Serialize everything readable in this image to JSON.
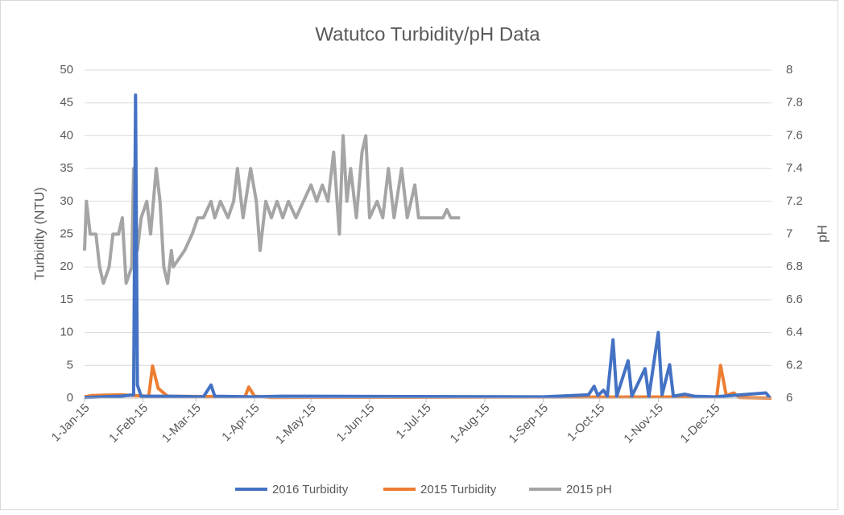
{
  "chart_data": {
    "type": "line",
    "title": "Watutco Turbidity/pH Data",
    "y_label": "Turbidity (NTU)",
    "y2_label": "pH",
    "xlim": [
      "2015-01-01",
      "2015-12-31"
    ],
    "xticks": [
      {
        "value": "2015-01-01",
        "label": "1-Jan-15"
      },
      {
        "value": "2015-02-01",
        "label": "1-Feb-15"
      },
      {
        "value": "2015-03-01",
        "label": "1-Mar-15"
      },
      {
        "value": "2015-04-01",
        "label": "1-Apr-15"
      },
      {
        "value": "2015-05-01",
        "label": "1-May-15"
      },
      {
        "value": "2015-06-01",
        "label": "1-Jun-15"
      },
      {
        "value": "2015-07-01",
        "label": "1-Jul-15"
      },
      {
        "value": "2015-08-01",
        "label": "1-Aug-15"
      },
      {
        "value": "2015-09-01",
        "label": "1-Sep-15"
      },
      {
        "value": "2015-10-01",
        "label": "1-Oct-15"
      },
      {
        "value": "2015-11-01",
        "label": "1-Nov-15"
      },
      {
        "value": "2015-12-01",
        "label": "1-Dec-15"
      }
    ],
    "ylim": [
      0,
      50
    ],
    "yticks": [
      0,
      5,
      10,
      15,
      20,
      25,
      30,
      35,
      40,
      45,
      50
    ],
    "y2lim": [
      6,
      8
    ],
    "y2ticks": [
      6,
      6.2,
      6.4,
      6.6,
      6.8,
      7,
      7.2,
      7.4,
      7.6,
      7.8,
      8
    ],
    "grid": true,
    "legend": "bottom",
    "series": [
      {
        "name": "2016 Turbidity",
        "color": "#4472c4",
        "x": [
          "2015-01-01",
          "2015-01-20",
          "2015-01-27",
          "2015-01-28",
          "2015-01-29",
          "2015-01-31",
          "2015-02-15",
          "2015-03-05",
          "2015-03-09",
          "2015-03-11",
          "2015-03-31",
          "2015-04-15",
          "2015-09-01",
          "2015-09-25",
          "2015-09-28",
          "2015-09-30",
          "2015-10-03",
          "2015-10-05",
          "2015-10-08",
          "2015-10-10",
          "2015-10-16",
          "2015-10-18",
          "2015-10-25",
          "2015-10-27",
          "2015-11-01",
          "2015-11-03",
          "2015-11-07",
          "2015-11-09",
          "2015-11-15",
          "2015-11-20",
          "2015-12-01",
          "2015-12-28",
          "2015-12-30"
        ],
        "values": [
          0.1,
          0.3,
          0.5,
          46.2,
          2,
          0.3,
          0.3,
          0.2,
          2,
          0.3,
          0.2,
          0.3,
          0.2,
          0.5,
          1.8,
          0.4,
          1.2,
          0.3,
          8.9,
          0.3,
          5.7,
          0.3,
          4.5,
          0.2,
          10,
          0.5,
          5.1,
          0.3,
          0.6,
          0.3,
          0.2,
          0.8,
          0.1
        ]
      },
      {
        "name": "2015 Turbidity",
        "color": "#ed7d31",
        "x": [
          "2015-01-01",
          "2015-01-05",
          "2015-01-20",
          "2015-02-04",
          "2015-02-06",
          "2015-02-09",
          "2015-02-14",
          "2015-03-27",
          "2015-03-29",
          "2015-04-01",
          "2015-04-10",
          "2015-12-02",
          "2015-12-04",
          "2015-12-07",
          "2015-12-11",
          "2015-12-14",
          "2015-12-31"
        ],
        "values": [
          0.2,
          0.4,
          0.5,
          0.3,
          4.9,
          1.5,
          0.3,
          0.2,
          1.7,
          0.3,
          0.1,
          0.2,
          5,
          0.4,
          0.8,
          0.1,
          0
        ]
      },
      {
        "name": "2015 pH",
        "color": "#a5a5a5",
        "axis": "y2",
        "x": [
          "2015-01-01",
          "2015-01-02",
          "2015-01-04",
          "2015-01-07",
          "2015-01-09",
          "2015-01-11",
          "2015-01-14",
          "2015-01-16",
          "2015-01-19",
          "2015-01-21",
          "2015-01-23",
          "2015-01-26",
          "2015-01-27",
          "2015-01-29",
          "2015-01-31",
          "2015-02-03",
          "2015-02-05",
          "2015-02-08",
          "2015-02-10",
          "2015-02-12",
          "2015-02-14",
          "2015-02-16",
          "2015-02-17",
          "2015-02-23",
          "2015-02-27",
          "2015-03-02",
          "2015-03-05",
          "2015-03-09",
          "2015-03-11",
          "2015-03-14",
          "2015-03-18",
          "2015-03-21",
          "2015-03-23",
          "2015-03-26",
          "2015-03-30",
          "2015-04-02",
          "2015-04-04",
          "2015-04-07",
          "2015-04-10",
          "2015-04-13",
          "2015-04-16",
          "2015-04-19",
          "2015-04-23",
          "2015-04-27",
          "2015-05-01",
          "2015-05-04",
          "2015-05-07",
          "2015-05-10",
          "2015-05-13",
          "2015-05-16",
          "2015-05-18",
          "2015-05-20",
          "2015-05-22",
          "2015-05-25",
          "2015-05-28",
          "2015-05-30",
          "2015-06-01",
          "2015-06-05",
          "2015-06-08",
          "2015-06-11",
          "2015-06-14",
          "2015-06-18",
          "2015-06-21",
          "2015-06-25",
          "2015-06-27",
          "2015-07-10",
          "2015-07-12",
          "2015-07-14",
          "2015-07-19"
        ],
        "values": [
          6.9,
          7.2,
          7,
          7,
          6.8,
          6.7,
          6.8,
          7,
          7,
          7.1,
          6.7,
          6.8,
          7.4,
          6.9,
          7.1,
          7.2,
          7,
          7.4,
          7.2,
          6.8,
          6.7,
          6.9,
          6.8,
          6.9,
          7,
          7.1,
          7.1,
          7.2,
          7.1,
          7.2,
          7.1,
          7.2,
          7.4,
          7.1,
          7.4,
          7.2,
          6.9,
          7.2,
          7.1,
          7.2,
          7.1,
          7.2,
          7.1,
          7.2,
          7.3,
          7.2,
          7.3,
          7.2,
          7.5,
          7,
          7.6,
          7.2,
          7.4,
          7.1,
          7.5,
          7.6,
          7.1,
          7.2,
          7.1,
          7.4,
          7.1,
          7.4,
          7.1,
          7.3,
          7.1,
          7.1,
          7.15,
          7.1,
          7.1
        ]
      }
    ]
  }
}
